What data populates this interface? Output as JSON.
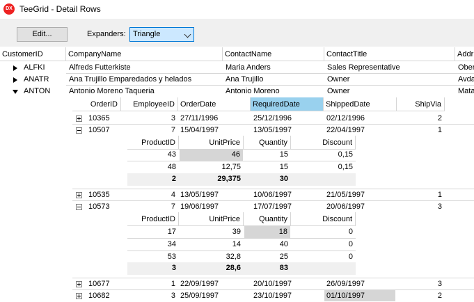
{
  "window": {
    "title": "TeeGrid - Detail Rows",
    "icon": "dx-app-icon",
    "icon_text": "DX"
  },
  "toolbar": {
    "edit_label": "Edit...",
    "expanders_label": "Expanders:",
    "expanders_value": "Triangle"
  },
  "master": {
    "columns": [
      "CustomerID",
      "CompanyName",
      "ContactName",
      "ContactTitle",
      "Addr"
    ],
    "rows": [
      {
        "id": "ALFKI",
        "company": "Alfreds Futterkiste",
        "contact": "Maria Anders",
        "title": "Sales Representative",
        "addr": "Ober",
        "expanded": false
      },
      {
        "id": "ANATR",
        "company": "Ana Trujillo Emparedados y helados",
        "contact": "Ana Trujillo",
        "title": "Owner",
        "addr": "Avda",
        "expanded": false
      },
      {
        "id": "ANTON",
        "company": "Antonio Moreno Taqueria",
        "contact": "Antonio Moreno",
        "title": "Owner",
        "addr": "Mata",
        "expanded": true
      }
    ]
  },
  "orders": {
    "columns": [
      "OrderID",
      "EmployeeID",
      "OrderDate",
      "RequiredDate",
      "ShippedDate",
      "ShipVia"
    ],
    "rows": [
      [
        "10365",
        "3",
        "27/11/1996",
        "25/12/1996",
        "02/12/1996",
        "2"
      ],
      [
        "10507",
        "7",
        "15/04/1997",
        "13/05/1997",
        "22/04/1997",
        "1"
      ],
      [
        "10535",
        "4",
        "13/05/1997",
        "10/06/1997",
        "21/05/1997",
        "1"
      ],
      [
        "10573",
        "7",
        "19/06/1997",
        "17/07/1997",
        "20/06/1997",
        "3"
      ],
      [
        "10677",
        "1",
        "22/09/1997",
        "20/10/1997",
        "26/09/1997",
        "3"
      ],
      [
        "10682",
        "3",
        "25/09/1997",
        "23/10/1997",
        "01/10/1997",
        "2"
      ]
    ]
  },
  "details": {
    "columns": [
      "ProductID",
      "UnitPrice",
      "Quantity",
      "Discount"
    ],
    "order_10507": {
      "rows": [
        [
          "43",
          "46",
          "15",
          "0,15"
        ],
        [
          "48",
          "12,75",
          "15",
          "0,15"
        ]
      ],
      "totals": [
        "2",
        "29,375",
        "30",
        ""
      ]
    },
    "order_10573": {
      "rows": [
        [
          "17",
          "39",
          "18",
          "0"
        ],
        [
          "34",
          "14",
          "40",
          "0"
        ],
        [
          "53",
          "32,8",
          "25",
          "0"
        ]
      ],
      "totals": [
        "3",
        "28,6",
        "83",
        ""
      ]
    }
  }
}
